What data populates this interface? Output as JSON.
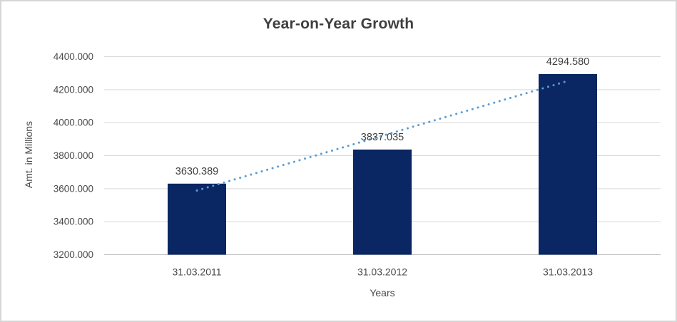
{
  "chart_data": {
    "type": "bar",
    "title": "Year-on-Year Growth",
    "xlabel": "Years",
    "ylabel": "Amt. in Millions",
    "categories": [
      "31.03.2011",
      "31.03.2012",
      "31.03.2013"
    ],
    "series": [
      {
        "name": "Amt. in Millions",
        "values": [
          3630.389,
          3837.035,
          4294.58
        ]
      }
    ],
    "data_labels": [
      "3630.389",
      "3837.035",
      "4294.580"
    ],
    "ylim": [
      3200,
      4400
    ],
    "ytick_step": 200,
    "ytick_labels": [
      "3200.000",
      "3400.000",
      "3600.000",
      "3800.000",
      "4000.000",
      "4200.000",
      "4400.000"
    ],
    "grid": true,
    "legend_position": "none",
    "trendline": {
      "type": "linear",
      "style": "dotted"
    },
    "colors": {
      "bar": "#0a2663",
      "trendline": "#5b9bd5",
      "gridline": "#d9d9d9",
      "axis_line": "#bfbfbf",
      "title_text": "#3f3f3f",
      "label_text": "#404040",
      "frame_border": "#d6d6d6",
      "background": "#ffffff"
    }
  }
}
